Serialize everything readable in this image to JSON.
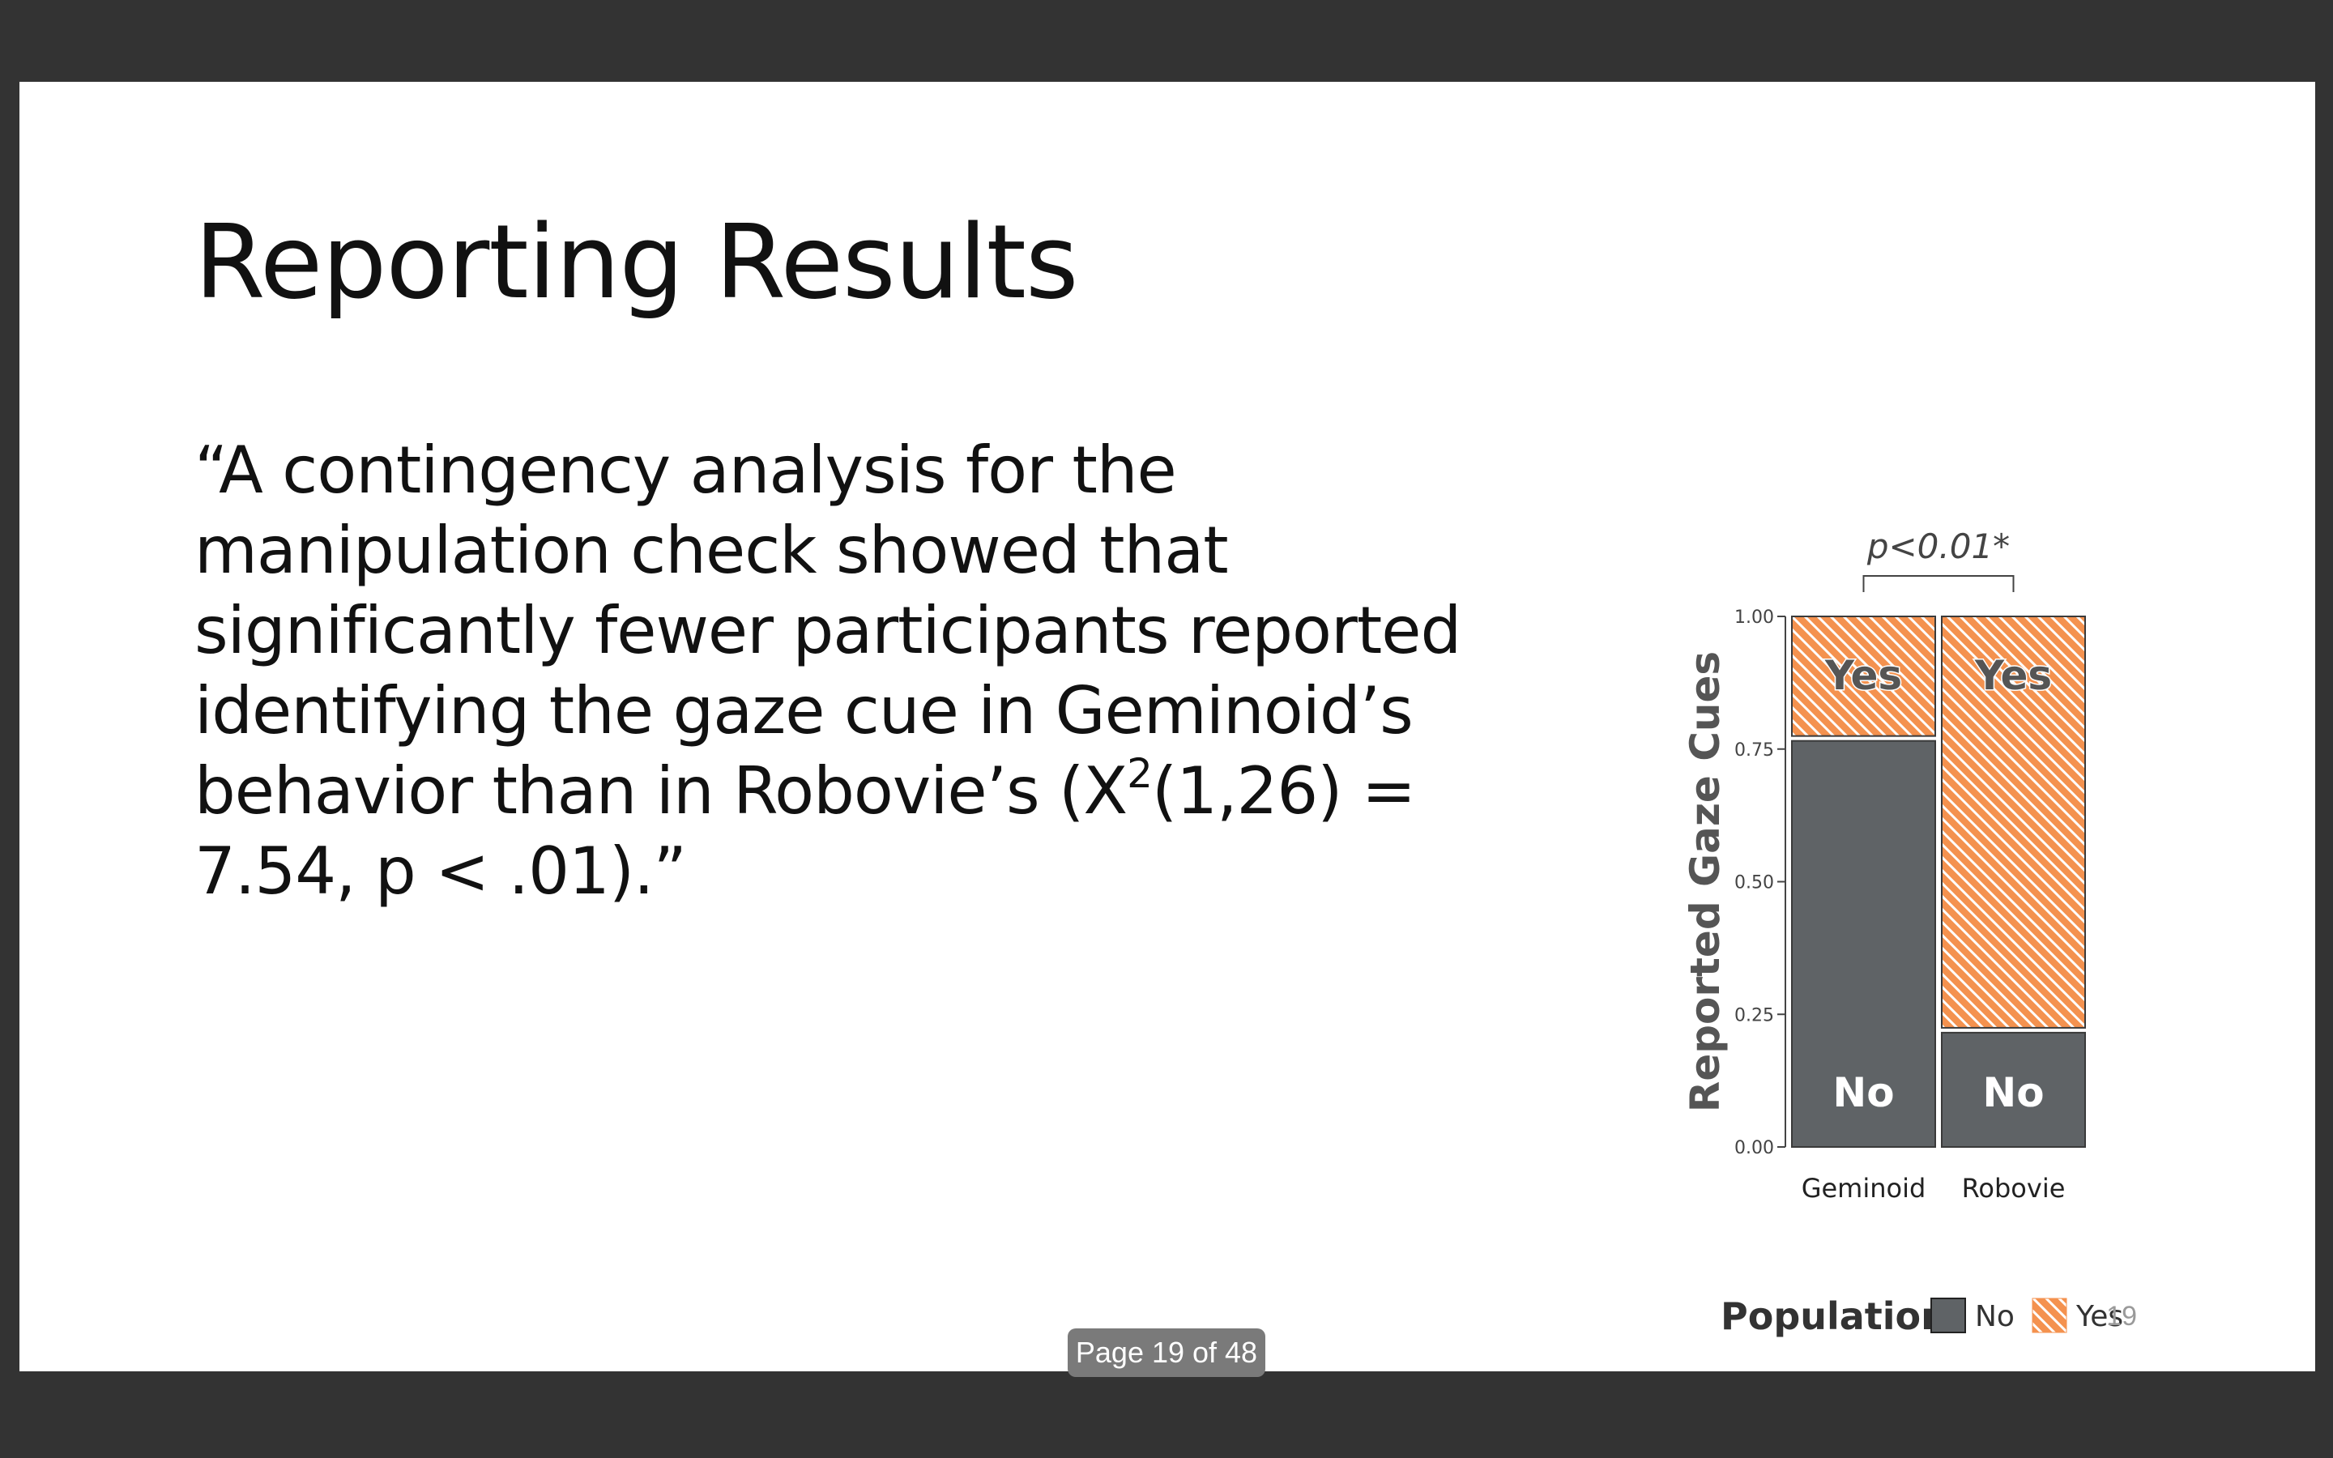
{
  "slide": {
    "title": "Reporting Results",
    "quote_part1": "“A contingency analysis for the manipulation check showed that significantly fewer participants reported identifying the gaze cue in Geminoid’s behavior than in Robovie’s (X",
    "quote_superscript": "2",
    "quote_part2": "(1,26) = 7.54, p < .01).”",
    "page_number": "19"
  },
  "viewer": {
    "page_indicator": "Page 19 of 48"
  },
  "colors": {
    "no": "#5f6366",
    "yes": "#f4924f",
    "background": "#333333"
  },
  "chart_data": {
    "type": "bar",
    "stacked": true,
    "categories": [
      "Geminoid",
      "Robovie"
    ],
    "series": [
      {
        "name": "No",
        "values": [
          0.77,
          0.22
        ],
        "bar_label": "No"
      },
      {
        "name": "Yes",
        "values": [
          0.23,
          0.78
        ],
        "bar_label": "Yes"
      }
    ],
    "ylabel": "Reported Gaze Cues",
    "xlabel": "",
    "ylim": [
      0,
      1
    ],
    "yticks": [
      "0.00",
      "0.25",
      "0.50",
      "0.75",
      "1.00"
    ],
    "annotation": "p<0.01*",
    "legend": {
      "title": "Population",
      "entries": [
        "No",
        "Yes"
      ],
      "placement": "bottom"
    },
    "grid": false
  }
}
